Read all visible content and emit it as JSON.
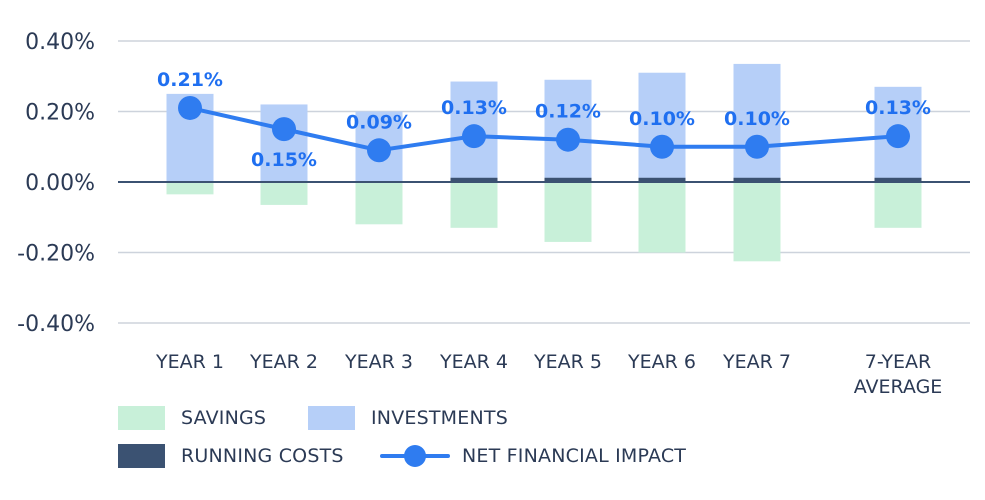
{
  "chart_data": {
    "type": "bar",
    "categories": [
      "YEAR 1",
      "YEAR 2",
      "YEAR 3",
      "YEAR 4",
      "YEAR 5",
      "YEAR 6",
      "YEAR 7",
      "7-YEAR AVERAGE"
    ],
    "series": [
      {
        "name": "SAVINGS",
        "values": [
          -0.035,
          -0.065,
          -0.12,
          -0.13,
          -0.17,
          -0.2,
          -0.225,
          -0.13
        ]
      },
      {
        "name": "INVESTMENTS",
        "values": [
          0.25,
          0.22,
          0.2,
          0.285,
          0.29,
          0.31,
          0.335,
          0.27
        ]
      },
      {
        "name": "RUNNING COSTS",
        "values": [
          0,
          0,
          0,
          0.012,
          0.012,
          0.012,
          0.012,
          0.012
        ]
      },
      {
        "name": "NET FINANCIAL IMPACT",
        "values": [
          0.21,
          0.15,
          0.09,
          0.13,
          0.12,
          0.1,
          0.1,
          0.13
        ]
      }
    ],
    "point_labels": [
      "0.21%",
      "0.15%",
      "0.09%",
      "0.13%",
      "0.12%",
      "0.10%",
      "0.10%",
      "0.13%"
    ],
    "y_ticks": [
      "0.40%",
      "0.20%",
      "0.00%",
      "-0.20%",
      "-0.40%"
    ],
    "y_tick_values": [
      0.4,
      0.2,
      0,
      -0.2,
      -0.4
    ],
    "ylim": [
      -0.4,
      0.4
    ],
    "grid": true,
    "legend_position": "bottom-left",
    "colors": {
      "savings": "#c8f0d9",
      "investments": "#b6cff8",
      "running_costs": "#3b5272",
      "net": "#2f7cf0",
      "net_label": "#1f6ff0",
      "grid": "#cdd3dc",
      "zero_line": "#3b5272",
      "tick_text": "#2b3a55"
    }
  },
  "legend": {
    "savings": "SAVINGS",
    "investments": "INVESTMENTS",
    "running_costs": "RUNNING COSTS",
    "net": "NET FINANCIAL IMPACT"
  }
}
